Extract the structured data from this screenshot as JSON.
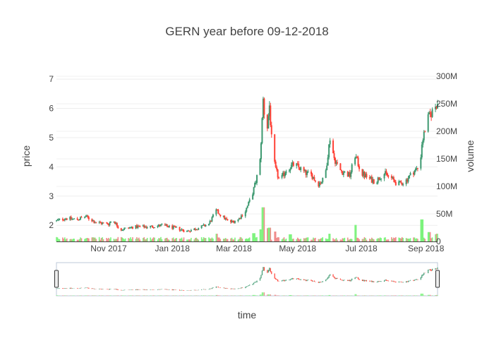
{
  "chart_data": {
    "type": "candlestick",
    "title": "GERN year before 09-12-2018",
    "xlabel": "time",
    "ylabel": "price",
    "y2label": "volume",
    "x_start": "2017-09-12",
    "x_end": "2018-09-12",
    "x_ticks": [
      {
        "date": "2017-11-01",
        "label": "Nov 2017"
      },
      {
        "date": "2018-01-01",
        "label": "Jan 2018"
      },
      {
        "date": "2018-03-01",
        "label": "Mar 2018"
      },
      {
        "date": "2018-05-01",
        "label": "May 2018"
      },
      {
        "date": "2018-07-01",
        "label": "Jul 2018"
      },
      {
        "date": "2018-09-01",
        "label": "Sep 2018"
      }
    ],
    "ylim": [
      1.45,
      7.1
    ],
    "y_ticks": [
      2,
      3,
      4,
      5,
      6,
      7
    ],
    "y2lim": [
      0,
      300
    ],
    "y2_ticks": [
      {
        "value": 0,
        "label": "0"
      },
      {
        "value": 50,
        "label": "50M"
      },
      {
        "value": 100,
        "label": "100M"
      },
      {
        "value": 150,
        "label": "150M"
      },
      {
        "value": 200,
        "label": "200M"
      },
      {
        "value": 250,
        "label": "250M"
      },
      {
        "value": 300,
        "label": "300M"
      }
    ],
    "increasing_color": "#3D9970",
    "decreasing_color": "#FF4136",
    "volume_increasing_color": "#7CF37C",
    "volume_decreasing_color": "#F08C8C",
    "grid": true,
    "legend": "none",
    "range_slider": true,
    "price_anchors": [
      [
        "2017-09-12",
        2.15
      ],
      [
        "2017-09-20",
        2.25
      ],
      [
        "2017-10-01",
        2.2
      ],
      [
        "2017-10-10",
        2.3
      ],
      [
        "2017-10-20",
        2.1
      ],
      [
        "2017-11-01",
        2.05
      ],
      [
        "2017-11-05",
        2.2
      ],
      [
        "2017-11-12",
        1.85
      ],
      [
        "2017-11-25",
        1.95
      ],
      [
        "2017-12-10",
        1.95
      ],
      [
        "2017-12-22",
        2.0
      ],
      [
        "2018-01-05",
        1.9
      ],
      [
        "2018-01-15",
        1.8
      ],
      [
        "2018-01-25",
        1.9
      ],
      [
        "2018-02-05",
        2.05
      ],
      [
        "2018-02-12",
        2.5
      ],
      [
        "2018-02-18",
        2.3
      ],
      [
        "2018-02-25",
        2.1
      ],
      [
        "2018-03-05",
        2.2
      ],
      [
        "2018-03-12",
        2.5
      ],
      [
        "2018-03-18",
        3.0
      ],
      [
        "2018-03-22",
        3.5
      ],
      [
        "2018-03-26",
        4.2
      ],
      [
        "2018-03-29",
        6.3
      ],
      [
        "2018-04-01",
        5.0
      ],
      [
        "2018-04-04",
        6.1
      ],
      [
        "2018-04-07",
        4.4
      ],
      [
        "2018-04-10",
        3.9
      ],
      [
        "2018-04-14",
        3.5
      ],
      [
        "2018-04-20",
        3.9
      ],
      [
        "2018-04-28",
        4.1
      ],
      [
        "2018-05-08",
        3.8
      ],
      [
        "2018-05-15",
        3.7
      ],
      [
        "2018-05-20",
        3.4
      ],
      [
        "2018-05-27",
        3.6
      ],
      [
        "2018-06-01",
        5.0
      ],
      [
        "2018-06-05",
        4.3
      ],
      [
        "2018-06-10",
        3.9
      ],
      [
        "2018-06-20",
        3.7
      ],
      [
        "2018-06-25",
        4.4
      ],
      [
        "2018-07-01",
        3.8
      ],
      [
        "2018-07-08",
        3.6
      ],
      [
        "2018-07-15",
        3.5
      ],
      [
        "2018-07-22",
        3.8
      ],
      [
        "2018-07-30",
        3.6
      ],
      [
        "2018-08-05",
        3.4
      ],
      [
        "2018-08-12",
        3.5
      ],
      [
        "2018-08-20",
        3.85
      ],
      [
        "2018-08-26",
        4.0
      ],
      [
        "2018-08-28",
        4.8
      ],
      [
        "2018-09-02",
        5.6
      ],
      [
        "2018-09-07",
        5.9
      ],
      [
        "2018-09-12",
        6.2
      ]
    ],
    "volume_spikes": [
      [
        "2018-02-12",
        14
      ],
      [
        "2018-03-20",
        15
      ],
      [
        "2018-03-26",
        22
      ],
      [
        "2018-03-29",
        62
      ],
      [
        "2018-04-02",
        24
      ],
      [
        "2018-04-04",
        25
      ],
      [
        "2018-04-09",
        18
      ],
      [
        "2018-04-24",
        13
      ],
      [
        "2018-06-01",
        14
      ],
      [
        "2018-06-25",
        30
      ],
      [
        "2018-08-28",
        40
      ],
      [
        "2018-09-04",
        17
      ],
      [
        "2018-09-10",
        13
      ],
      [
        "2018-09-12",
        14
      ]
    ]
  }
}
